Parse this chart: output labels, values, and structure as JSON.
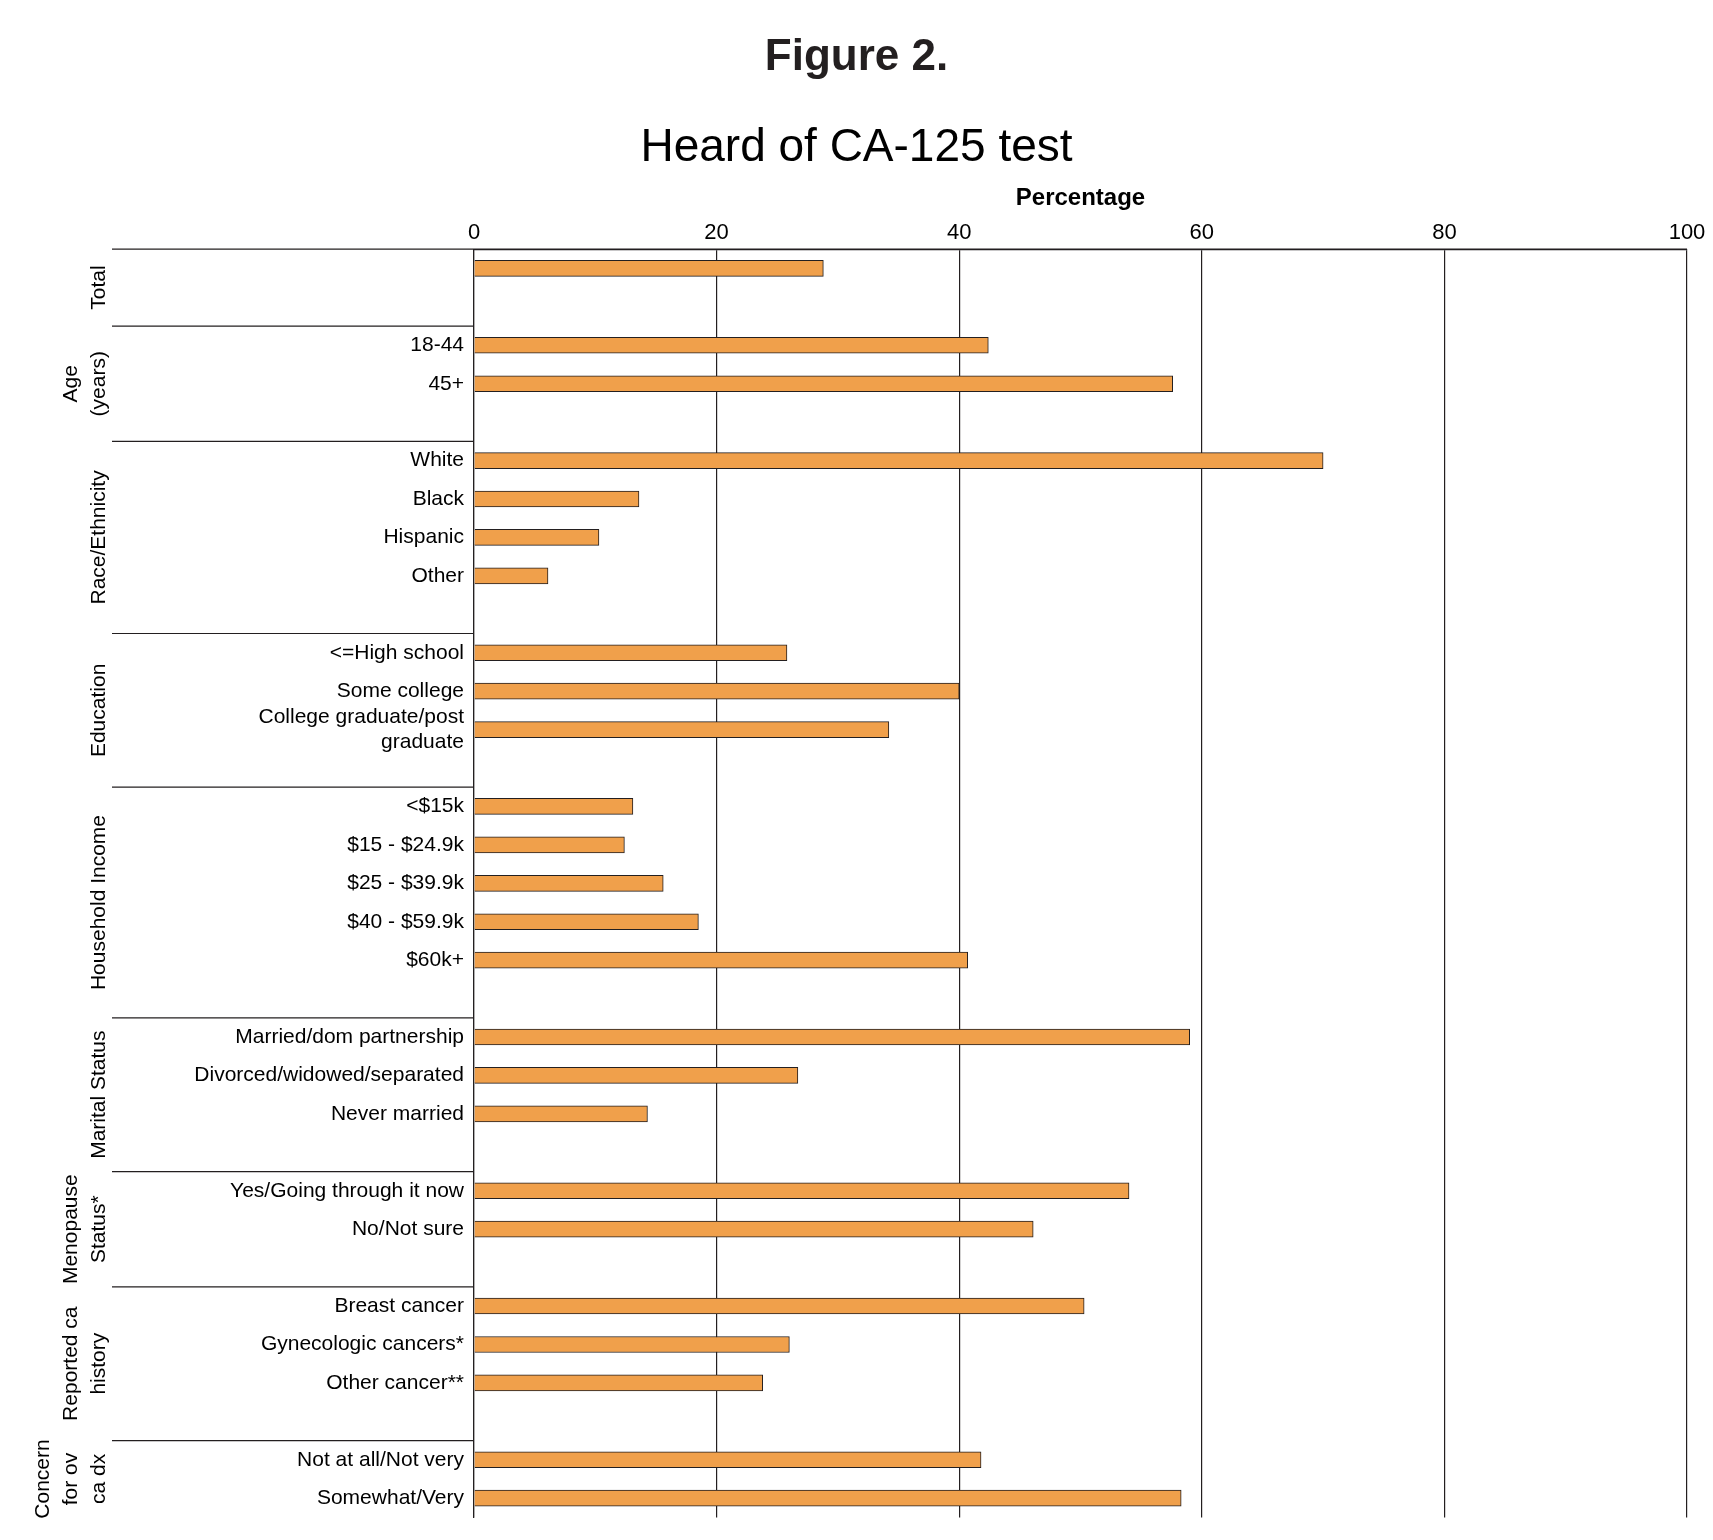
{
  "chart_data": {
    "type": "bar",
    "orientation": "horizontal",
    "title": "Figure 2.",
    "subtitle": "Heard of CA-125 test",
    "xlabel": "Percentage",
    "categories": [
      null,
      "18-44",
      "45+",
      "White",
      "Black",
      "Hispanic",
      "Other",
      "<=High school",
      "Some college",
      "College graduate/post graduate",
      "<$15k",
      "$15 - $24.9k",
      "$25 - $39.9k",
      "$40 - $59.9k",
      "$60k+",
      "Married/dom partnership",
      "Divorced/widowed/separated",
      "Never married",
      "Yes/Going through it now",
      "No/Not sure",
      "Breast cancer",
      "Gynecologic cancers*",
      "Other cancer**",
      "Not at all/Not very",
      "Somewhat/Very"
    ],
    "values": [
      28.8,
      42.4,
      57.6,
      70.0,
      13.6,
      10.3,
      6.1,
      25.8,
      40.0,
      34.2,
      13.1,
      12.4,
      15.6,
      18.5,
      40.7,
      59.0,
      26.7,
      14.3,
      54.0,
      46.1,
      50.3,
      26.0,
      23.8,
      41.8,
      58.3
    ],
    "color": "#f0a04b",
    "xlim": [
      0,
      100
    ],
    "xticks": [
      0,
      20,
      40,
      60,
      80,
      100
    ],
    "grid": "x",
    "legend": false,
    "annotations": [
      "Total",
      "Age (years)",
      "Race/Ethnicity",
      "Education",
      "Household Income",
      "Marital Status",
      "Menopause Status*",
      "Reported ca history",
      "Concern for ov ca dx"
    ]
  }
}
